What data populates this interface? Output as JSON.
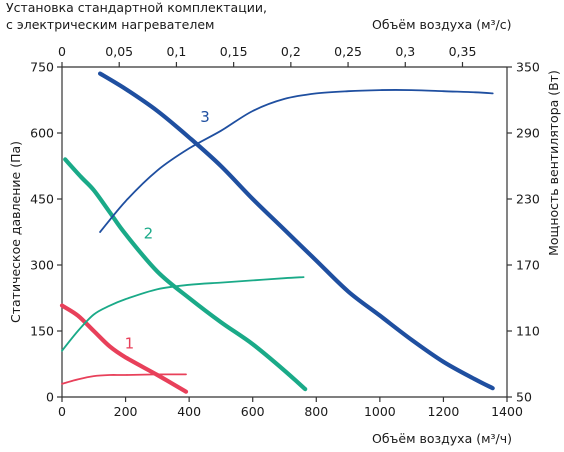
{
  "chart_data": {
    "type": "line",
    "title_lines": [
      "Установка стандартной комплектации,",
      "с электрическим нагревателем"
    ],
    "x_bottom": {
      "label": "Объём воздуха (м³/ч)",
      "range": [
        0,
        1400
      ],
      "ticks": [
        0,
        200,
        400,
        600,
        800,
        1000,
        1200,
        1400
      ],
      "tick_labels": [
        "0",
        "200",
        "400",
        "600",
        "800",
        "1000",
        "1200",
        "1400"
      ]
    },
    "x_top": {
      "label": "Объём воздуха (м³/с)",
      "range": [
        0,
        0.3889
      ],
      "ticks": [
        0,
        0.05,
        0.1,
        0.15,
        0.2,
        0.25,
        0.3,
        0.35
      ],
      "tick_labels": [
        "0",
        "0,05",
        "0,1",
        "0,15",
        "0,2",
        "0,25",
        "0,3",
        "0,35"
      ]
    },
    "y_left": {
      "label": "Статическое давление (Па)",
      "range": [
        0,
        750
      ],
      "ticks": [
        0,
        150,
        300,
        450,
        600,
        750
      ],
      "tick_labels": [
        "0",
        "150",
        "300",
        "450",
        "600",
        "750"
      ]
    },
    "y_right": {
      "label": "Мощность вентилятора (Вт)",
      "range": [
        50,
        350
      ],
      "ticks": [
        50,
        110,
        170,
        230,
        290,
        350
      ],
      "tick_labels": [
        "50",
        "110",
        "170",
        "230",
        "290",
        "350"
      ]
    },
    "grid": false,
    "series": [
      {
        "name": "1",
        "kind": "pressure",
        "color": "#e8405a",
        "axis": "left",
        "x": [
          0,
          50,
          100,
          150,
          200,
          300,
          390
        ],
        "y": [
          208,
          185,
          150,
          115,
          90,
          50,
          12
        ]
      },
      {
        "name": "1",
        "kind": "power",
        "color": "#e8405a",
        "axis": "right",
        "x": [
          0,
          50,
          100,
          150,
          200,
          300,
          390
        ],
        "y": [
          62,
          66,
          69,
          70,
          70,
          70.5,
          70.5
        ]
      },
      {
        "name": "2",
        "kind": "pressure",
        "color": "#1aaa88",
        "axis": "left",
        "x": [
          10,
          60,
          100,
          150,
          200,
          300,
          400,
          500,
          600,
          700,
          765
        ],
        "y": [
          540,
          500,
          470,
          420,
          370,
          285,
          225,
          170,
          120,
          60,
          18
        ]
      },
      {
        "name": "2",
        "kind": "power",
        "color": "#1aaa88",
        "axis": "right",
        "x": [
          0,
          50,
          100,
          150,
          200,
          300,
          400,
          500,
          600,
          700,
          760
        ],
        "y": [
          92,
          110,
          125,
          133,
          139,
          148,
          152,
          154,
          156,
          158,
          159
        ]
      },
      {
        "name": "3",
        "kind": "pressure",
        "color": "#1f4fa0",
        "axis": "left",
        "x": [
          120,
          200,
          300,
          400,
          500,
          600,
          700,
          800,
          900,
          1000,
          1100,
          1200,
          1300,
          1355
        ],
        "y": [
          735,
          700,
          650,
          590,
          525,
          450,
          380,
          310,
          240,
          185,
          130,
          80,
          40,
          20
        ]
      },
      {
        "name": "3",
        "kind": "power",
        "color": "#1f4fa0",
        "axis": "right",
        "x": [
          120,
          200,
          300,
          400,
          500,
          600,
          700,
          800,
          900,
          1000,
          1100,
          1200,
          1300,
          1355
        ],
        "y": [
          200,
          228,
          256,
          276,
          292,
          310,
          321,
          326,
          328,
          329,
          329,
          328,
          327,
          326
        ]
      }
    ],
    "series_labels": [
      {
        "text": "1",
        "color": "#e8405a",
        "x": 212,
        "y": 110
      },
      {
        "text": "2",
        "color": "#1aaa88",
        "x": 272,
        "y": 360
      },
      {
        "text": "3",
        "color": "#1f4fa0",
        "x": 450,
        "y": 625
      }
    ]
  }
}
